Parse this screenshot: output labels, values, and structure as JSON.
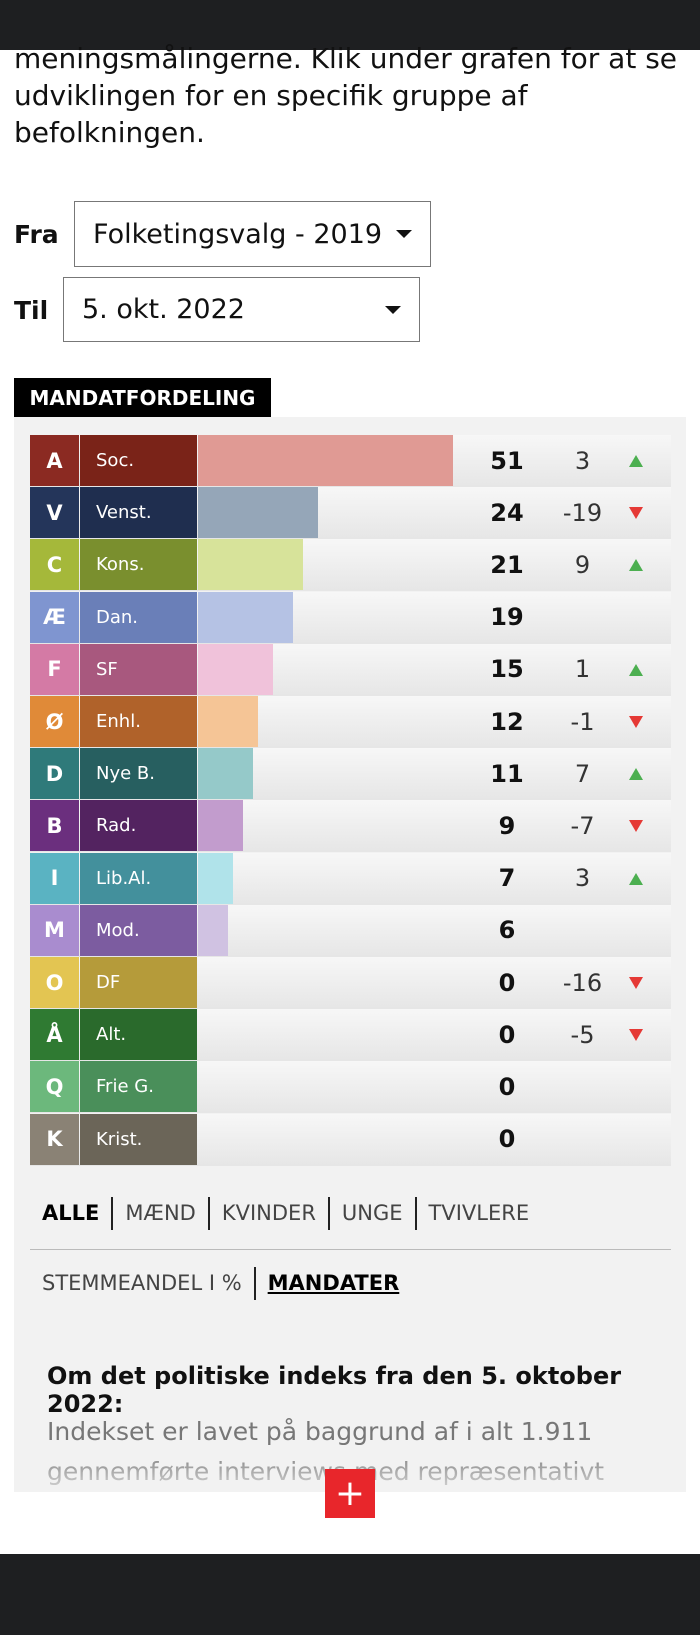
{
  "intro": "meningsmålingerne. Klik under grafen for at se udviklingen for en specifik gruppe af befolkningen.",
  "filters": [
    {
      "label": "Fra",
      "value": "Folketingsvalg - 2019"
    },
    {
      "label": "Til",
      "value": "5. okt. 2022"
    }
  ],
  "chart_data": {
    "type": "bar",
    "title": "MANDATFORDELING",
    "categories": [
      "A",
      "V",
      "C",
      "Æ",
      "F",
      "Ø",
      "D",
      "B",
      "I",
      "M",
      "O",
      "Å",
      "Q",
      "K"
    ],
    "names": [
      "Soc.",
      "Venst.",
      "Kons.",
      "Dan.",
      "SF",
      "Enhl.",
      "Nye B.",
      "Rad.",
      "Lib.Al.",
      "Mod.",
      "DF",
      "Alt.",
      "Frie G.",
      "Krist."
    ],
    "values": [
      51,
      24,
      21,
      19,
      15,
      12,
      11,
      9,
      7,
      6,
      0,
      0,
      0,
      0
    ],
    "changes": [
      3,
      -19,
      9,
      null,
      1,
      -1,
      7,
      -7,
      3,
      null,
      -16,
      -5,
      null,
      null
    ],
    "letter_colors": [
      "#8b2a22",
      "#24355a",
      "#a5b83a",
      "#7f95d0",
      "#d47aa5",
      "#e08a38",
      "#2f7a7a",
      "#6b2f7e",
      "#5ab3c2",
      "#a98ccf",
      "#e3c552",
      "#2f7a32",
      "#6cb87c",
      "#8a8275"
    ],
    "name_colors": [
      "#7a2318",
      "#1f2e4f",
      "#7a8f2e",
      "#6a7fb8",
      "#a8587e",
      "#b0622a",
      "#275f60",
      "#532360",
      "#43909c",
      "#7c5ca0",
      "#b59b3a",
      "#2a6a2c",
      "#4a8f5a",
      "#6b6558"
    ],
    "bar_colors": [
      "#e09a94",
      "#95a6b8",
      "#d7e39a",
      "#b5c2e4",
      "#f0c2da",
      "#f5c596",
      "#95c9c9",
      "#c29ccd",
      "#b0e3ea",
      "#d0c2e2",
      "#f0e0a0",
      "#9ccf9e",
      "#b8e0c0",
      "#c8c2b8"
    ],
    "up_color": "#4caf50",
    "down_color": "#e53935"
  },
  "tabs": [
    "ALLE",
    "MÆND",
    "KVINDER",
    "UNGE",
    "TVIVLERE"
  ],
  "modes": [
    "STEMMEANDEL I %",
    "MANDATER"
  ],
  "about": {
    "title": "Om det politiske indeks fra den 5. oktober 2022:",
    "text": "Indekset er lavet på baggrund af i alt 1.911 gennemførte interviews med repræsentativt"
  }
}
